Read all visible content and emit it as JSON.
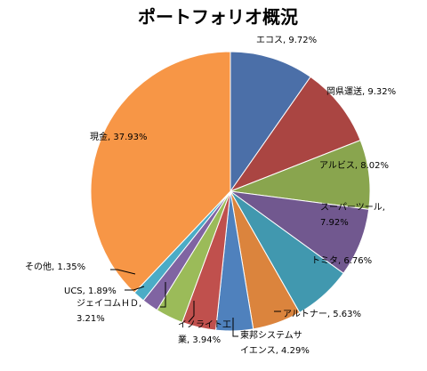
{
  "chart_data": {
    "type": "pie",
    "title": "ポートフォリオ概況",
    "start_angle_deg": 0,
    "direction": "clockwise",
    "slices": [
      {
        "label": "エコス",
        "value": 9.72,
        "display": "9.72%",
        "color": "#4b6fa8"
      },
      {
        "label": "岡県運送",
        "value": 9.32,
        "display": "9.32%",
        "color": "#aa4542"
      },
      {
        "label": "アルビス",
        "value": 8.02,
        "display": "8.02%",
        "color": "#89a54e"
      },
      {
        "label": "スーパーツール",
        "value": 7.92,
        "display": "7.92%",
        "color": "#71588f"
      },
      {
        "label": "トミタ",
        "value": 6.76,
        "display": "6.76%",
        "color": "#4198af"
      },
      {
        "label": "アルトナー",
        "value": 5.63,
        "display": "5.63%",
        "color": "#db843d"
      },
      {
        "label": "東邦システムサイエンス",
        "value": 4.29,
        "display": "4.29%",
        "color": "#4f81bd"
      },
      {
        "label": "イノライト工業",
        "value": 3.94,
        "display": "3.94%",
        "color": "#c0504d"
      },
      {
        "label": "ジェイコムＨＤ",
        "value": 3.21,
        "display": "3.21%",
        "color": "#9bbb59"
      },
      {
        "label": "UCS",
        "value": 1.89,
        "display": "1.89%",
        "color": "#8064a2"
      },
      {
        "label": "その他",
        "value": 1.35,
        "display": "1.35%",
        "color": "#4bacc6"
      },
      {
        "label": "現金",
        "value": 37.93,
        "display": "37.93%",
        "color": "#f79646"
      }
    ]
  },
  "labels": [
    {
      "lines": [
        "エコス, 9.72%"
      ]
    },
    {
      "lines": [
        "岡県運送, 9.32%"
      ]
    },
    {
      "lines": [
        "アルビス, 8.02%"
      ]
    },
    {
      "lines": [
        "スーパーツール,",
        "7.92%"
      ]
    },
    {
      "lines": [
        "トミタ, 6.76%"
      ]
    },
    {
      "lines": [
        "アルトナー, 5.63%"
      ]
    },
    {
      "lines": [
        "東邦システムサ",
        "イエンス, 4.29%"
      ]
    },
    {
      "lines": [
        "イノライト工",
        "業, 3.94%"
      ]
    },
    {
      "lines": [
        "ジェイコムＨＤ,",
        "3.21%"
      ]
    },
    {
      "lines": [
        "UCS, 1.89%"
      ]
    },
    {
      "lines": [
        "その他, 1.35%"
      ]
    },
    {
      "lines": [
        "現金, 37.93%"
      ]
    }
  ]
}
